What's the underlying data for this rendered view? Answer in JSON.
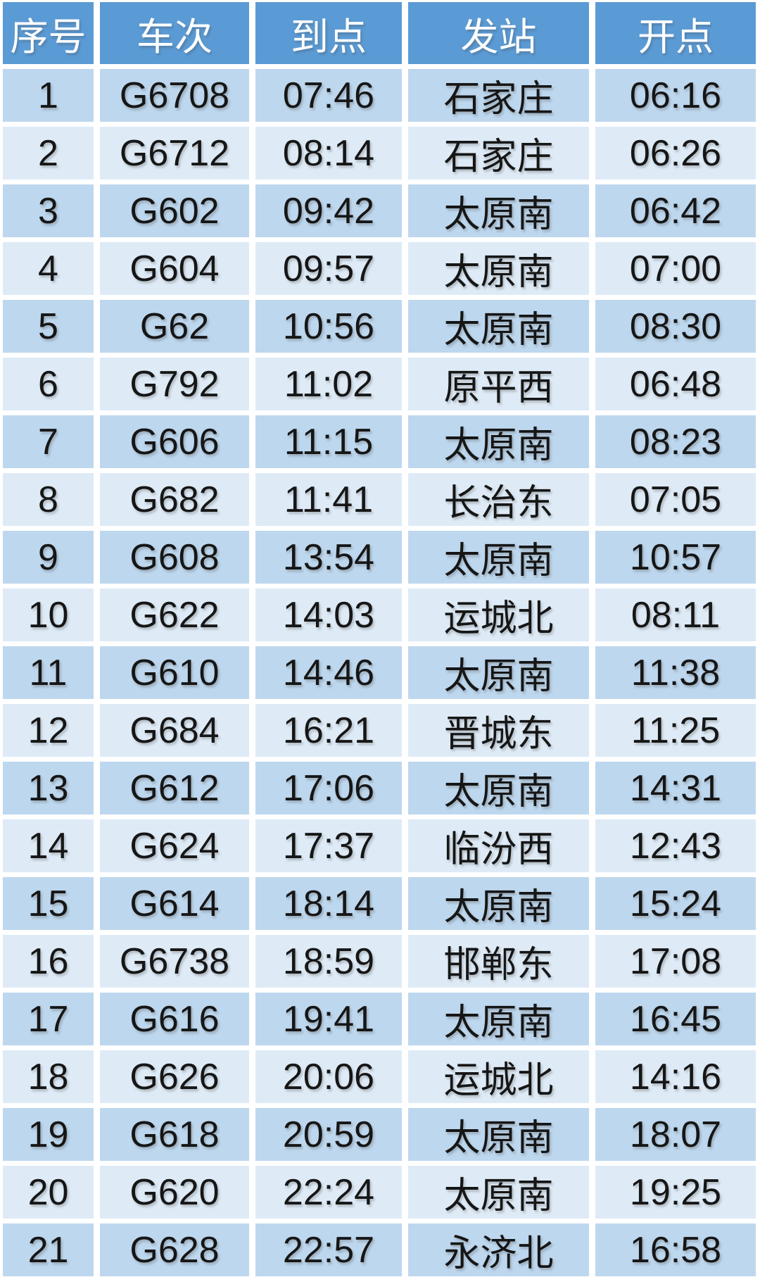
{
  "colors": {
    "header_bg": "#5B9BD5",
    "row_odd_bg": "#BDD7EE",
    "row_even_bg": "#DEEBF7",
    "header_text": "#FFFFFF",
    "cell_text": "#161616",
    "page_bg": "#FFFFFF"
  },
  "chart_data": {
    "type": "table",
    "title": "",
    "columns": [
      "序号",
      "车次",
      "到点",
      "发站",
      "开点"
    ],
    "rows": [
      [
        "1",
        "G6708",
        "07:46",
        "石家庄",
        "06:16"
      ],
      [
        "2",
        "G6712",
        "08:14",
        "石家庄",
        "06:26"
      ],
      [
        "3",
        "G602",
        "09:42",
        "太原南",
        "06:42"
      ],
      [
        "4",
        "G604",
        "09:57",
        "太原南",
        "07:00"
      ],
      [
        "5",
        "G62",
        "10:56",
        "太原南",
        "08:30"
      ],
      [
        "6",
        "G792",
        "11:02",
        "原平西",
        "06:48"
      ],
      [
        "7",
        "G606",
        "11:15",
        "太原南",
        "08:23"
      ],
      [
        "8",
        "G682",
        "11:41",
        "长治东",
        "07:05"
      ],
      [
        "9",
        "G608",
        "13:54",
        "太原南",
        "10:57"
      ],
      [
        "10",
        "G622",
        "14:03",
        "运城北",
        "08:11"
      ],
      [
        "11",
        "G610",
        "14:46",
        "太原南",
        "11:38"
      ],
      [
        "12",
        "G684",
        "16:21",
        "晋城东",
        "11:25"
      ],
      [
        "13",
        "G612",
        "17:06",
        "太原南",
        "14:31"
      ],
      [
        "14",
        "G624",
        "17:37",
        "临汾西",
        "12:43"
      ],
      [
        "15",
        "G614",
        "18:14",
        "太原南",
        "15:24"
      ],
      [
        "16",
        "G6738",
        "18:59",
        "邯郸东",
        "17:08"
      ],
      [
        "17",
        "G616",
        "19:41",
        "太原南",
        "16:45"
      ],
      [
        "18",
        "G626",
        "20:06",
        "运城北",
        "14:16"
      ],
      [
        "19",
        "G618",
        "20:59",
        "太原南",
        "18:07"
      ],
      [
        "20",
        "G620",
        "22:24",
        "太原南",
        "19:25"
      ],
      [
        "21",
        "G628",
        "22:57",
        "永济北",
        "16:58"
      ]
    ]
  }
}
